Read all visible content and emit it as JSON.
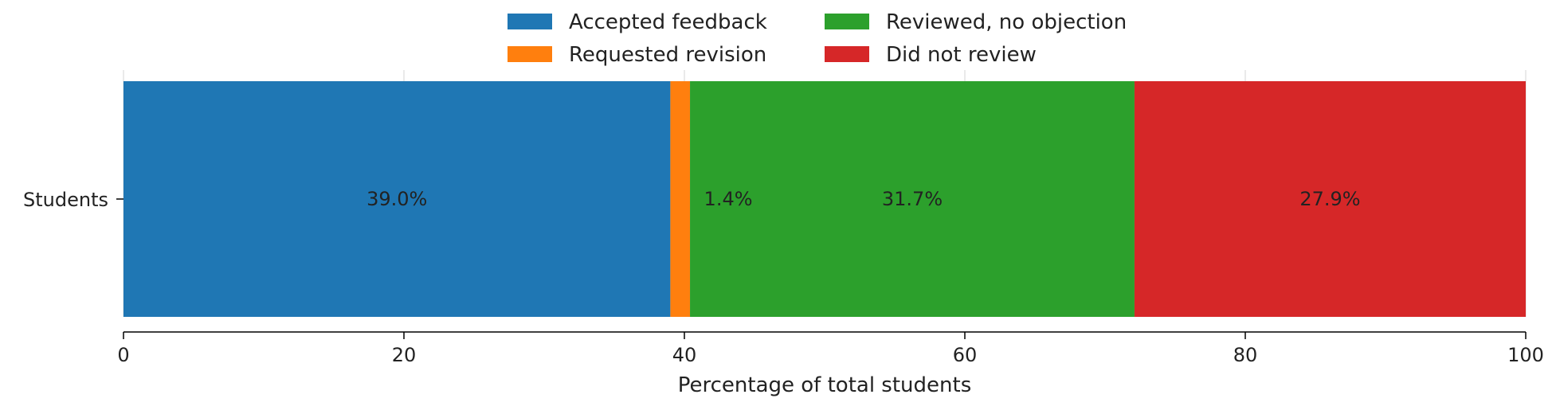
{
  "chart_data": {
    "type": "bar",
    "orientation": "horizontal",
    "stacked": true,
    "categories": [
      "Students"
    ],
    "series": [
      {
        "name": "Accepted feedback",
        "values": [
          39.0
        ],
        "color": "#1f77b4",
        "label": "39.0%"
      },
      {
        "name": "Requested revision",
        "values": [
          1.4
        ],
        "color": "#ff7f0e",
        "label": "1.4%"
      },
      {
        "name": "Reviewed, no objection",
        "values": [
          31.7
        ],
        "color": "#2ca02c",
        "label": "31.7%"
      },
      {
        "name": "Did not review",
        "values": [
          27.9
        ],
        "color": "#d62728",
        "label": "27.9%"
      }
    ],
    "xlabel": "Percentage of total students",
    "ylabel": "",
    "xlim": [
      0,
      100
    ],
    "xticks": [
      0,
      20,
      40,
      60,
      80,
      100
    ],
    "xtick_labels": [
      "0",
      "20",
      "40",
      "60",
      "80",
      "100"
    ],
    "grid": "vertical",
    "legend_position": "top-center",
    "legend_columns": 2
  }
}
